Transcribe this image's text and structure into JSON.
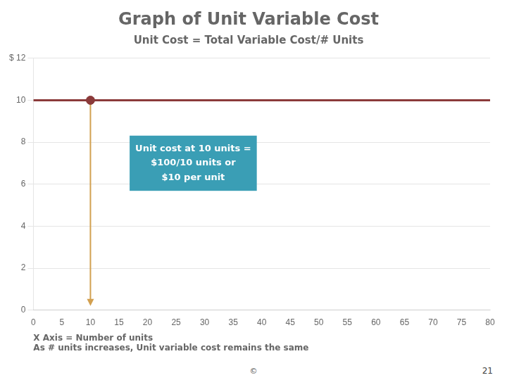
{
  "chart_data": {
    "type": "line",
    "title": "Graph of Unit Variable Cost",
    "subtitle": "Unit Cost = Total Variable Cost/# Units",
    "series": [
      {
        "type": "line",
        "x": [
          0,
          80
        ],
        "values": [
          10,
          10
        ],
        "color": "#8B3A3A"
      },
      {
        "type": "scatter",
        "x": [
          10
        ],
        "values": [
          10
        ],
        "color": "#8B3A3A"
      }
    ],
    "arrows": [
      {
        "x": 10,
        "y_from": 10,
        "y_to": 0.2,
        "color": "#D2A050"
      }
    ],
    "annotations": [
      {
        "text": "Unit cost at 10 units =\n$100/10 units or\n$10 per unit",
        "x": 28,
        "y": 7.0,
        "color": "#3A9EB5"
      }
    ],
    "xlabel": [
      "X Axis = Number of units",
      "As # units increases, Unit variable cost remains the same"
    ],
    "xlim": [
      0,
      80
    ],
    "ylim": [
      0,
      12
    ],
    "xticks": [
      0,
      5,
      10,
      15,
      20,
      25,
      30,
      35,
      40,
      45,
      50,
      55,
      60,
      65,
      70,
      75,
      80
    ],
    "yticks": [
      0,
      2,
      4,
      6,
      8,
      10,
      {
        "value": 12,
        "label": "$ 12"
      }
    ],
    "grid": "y",
    "footnote": "©",
    "page_number": "21"
  }
}
